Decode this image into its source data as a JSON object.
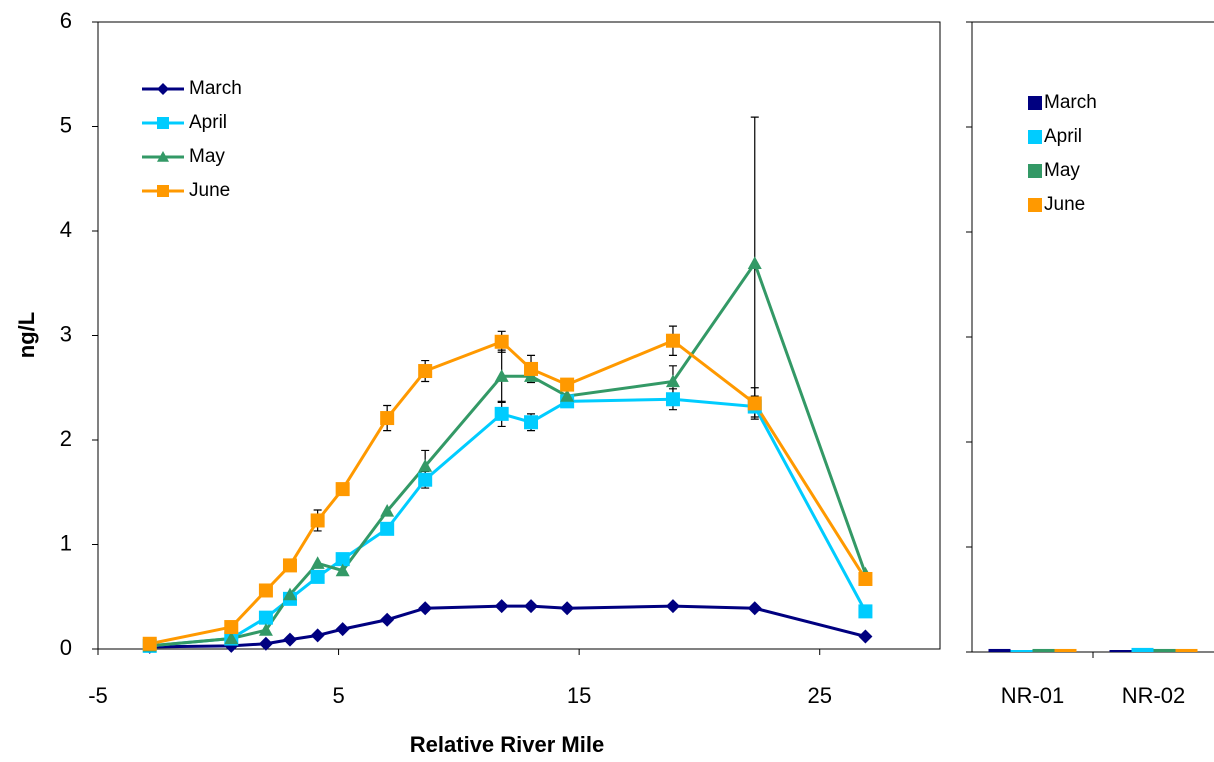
{
  "chart_data": [
    {
      "type": "line",
      "x_label": "Relative River Mile",
      "y_label": "ng/L",
      "xlim": [
        -5,
        30
      ],
      "xticks": [
        -5,
        5,
        15,
        25
      ],
      "ylim": [
        0,
        6
      ],
      "yticks": [
        0,
        1,
        2,
        3,
        4,
        5,
        6
      ],
      "legend": "upper left",
      "x": [
        -2.85,
        0.54,
        1.98,
        2.98,
        4.13,
        5.17,
        7.02,
        8.6,
        11.78,
        13.0,
        14.5,
        18.9,
        22.3,
        26.9
      ],
      "series": [
        {
          "name": "March",
          "color": "#000080",
          "marker": "diamond",
          "values": [
            0.02,
            0.03,
            0.05,
            0.09,
            0.13,
            0.19,
            0.28,
            0.39,
            0.41,
            0.41,
            0.39,
            0.41,
            0.39,
            0.12
          ]
        },
        {
          "name": "April",
          "color": "#00ccff",
          "marker": "square",
          "values": [
            0.03,
            0.1,
            0.3,
            0.48,
            0.69,
            0.86,
            1.15,
            1.62,
            2.25,
            2.17,
            2.37,
            2.39,
            2.32,
            0.36
          ],
          "errors": [
            null,
            null,
            null,
            null,
            null,
            null,
            null,
            0.08,
            0.12,
            0.08,
            null,
            0.1,
            0.1,
            null
          ]
        },
        {
          "name": "May",
          "color": "#339966",
          "marker": "triangle",
          "values": [
            0.03,
            0.1,
            0.18,
            0.52,
            0.82,
            0.75,
            1.32,
            1.75,
            2.61,
            2.61,
            2.42,
            2.56,
            3.69,
            0.72
          ],
          "errors": [
            null,
            null,
            null,
            null,
            null,
            null,
            null,
            0.15,
            0.25,
            null,
            null,
            0.15,
            1.4,
            null
          ]
        },
        {
          "name": "June",
          "color": "#ff9900",
          "marker": "square",
          "values": [
            0.05,
            0.21,
            0.56,
            0.8,
            1.23,
            1.53,
            2.21,
            2.66,
            2.94,
            2.68,
            2.53,
            2.95,
            2.35,
            0.67
          ],
          "errors": [
            null,
            null,
            null,
            null,
            0.1,
            null,
            0.12,
            0.1,
            0.1,
            0.13,
            null,
            0.14,
            0.15,
            null
          ]
        }
      ]
    },
    {
      "type": "bar",
      "categories": [
        "NR-01",
        "NR-02"
      ],
      "ylim": [
        0,
        6
      ],
      "yticks": [
        0,
        1,
        2,
        3,
        4,
        5,
        6
      ],
      "legend": "upper right",
      "series": [
        {
          "name": "March",
          "color": "#000080",
          "values": [
            0.01,
            0.0
          ]
        },
        {
          "name": "April",
          "color": "#00ccff",
          "values": [
            0.0,
            0.02
          ]
        },
        {
          "name": "May",
          "color": "#339966",
          "values": [
            0.01,
            0.01
          ]
        },
        {
          "name": "June",
          "color": "#ff9900",
          "values": [
            0.01,
            0.01
          ]
        }
      ]
    }
  ]
}
